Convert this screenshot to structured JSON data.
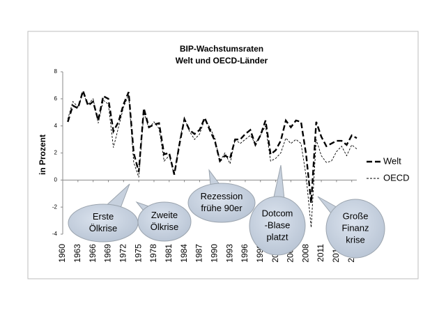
{
  "chart_data": {
    "type": "line",
    "title": [
      "BIP-Wachstumsraten",
      "Welt und OECD-Länder"
    ],
    "y_label": "in Prozent",
    "x": [
      1961,
      1962,
      1963,
      1964,
      1965,
      1966,
      1967,
      1968,
      1969,
      1970,
      1971,
      1972,
      1973,
      1974,
      1975,
      1976,
      1977,
      1978,
      1979,
      1980,
      1981,
      1982,
      1983,
      1984,
      1985,
      1986,
      1987,
      1988,
      1989,
      1990,
      1991,
      1992,
      1993,
      1994,
      1995,
      1996,
      1997,
      1998,
      1999,
      2000,
      2001,
      2002,
      2003,
      2004,
      2005,
      2006,
      2007,
      2008,
      2009,
      2010,
      2011,
      2012,
      2013,
      2014,
      2015,
      2016,
      2017,
      2018
    ],
    "series": [
      {
        "name": "Welt",
        "color": "#000000",
        "values": [
          4.3,
          5.5,
          5.3,
          6.6,
          5.5,
          5.8,
          4.4,
          6.2,
          6.0,
          3.6,
          4.3,
          5.6,
          6.5,
          2.0,
          0.6,
          5.3,
          3.9,
          4.1,
          4.2,
          1.9,
          2.0,
          0.4,
          2.6,
          4.5,
          3.7,
          3.4,
          3.7,
          4.6,
          3.7,
          2.9,
          1.4,
          1.8,
          1.6,
          3.0,
          3.0,
          3.4,
          3.7,
          2.6,
          3.3,
          4.4,
          1.9,
          2.2,
          2.9,
          4.4,
          3.9,
          4.4,
          4.3,
          1.9,
          -1.7,
          4.3,
          3.2,
          2.5,
          2.7,
          2.9,
          2.9,
          2.6,
          3.3,
          3.1
        ]
      },
      {
        "name": "OECD",
        "color": "#000000",
        "values": [
          4.5,
          5.8,
          5.4,
          6.4,
          5.6,
          6.0,
          4.2,
          5.9,
          5.6,
          2.4,
          3.9,
          5.4,
          6.3,
          1.3,
          0.2,
          5.0,
          3.8,
          4.3,
          3.8,
          1.4,
          1.8,
          0.4,
          2.8,
          4.6,
          3.6,
          3.0,
          3.4,
          4.5,
          3.9,
          3.1,
          1.4,
          2.0,
          1.2,
          3.0,
          2.7,
          3.0,
          3.3,
          2.7,
          3.3,
          4.0,
          1.4,
          1.6,
          2.0,
          3.1,
          2.7,
          3.0,
          2.7,
          0.3,
          -3.5,
          3.0,
          1.8,
          1.3,
          1.4,
          2.1,
          2.5,
          1.8,
          2.6,
          2.3
        ]
      }
    ],
    "xlim": [
      1960,
      2018
    ],
    "xticks": [
      1960,
      1963,
      1966,
      1969,
      1972,
      1975,
      1978,
      1981,
      1984,
      1987,
      1990,
      1993,
      1996,
      1999,
      2002,
      2005,
      2008,
      2011,
      2014,
      2017
    ],
    "ylim": [
      -4,
      8
    ],
    "yticks": [
      -4,
      -2,
      0,
      2,
      4,
      6,
      8
    ],
    "grid": false,
    "legend": "right",
    "annotations": [
      {
        "text": [
          "Erste",
          "Ölkrise"
        ]
      },
      {
        "text": [
          "Zweite",
          "Ölkrise"
        ]
      },
      {
        "text": [
          "Rezession",
          "frühe 90er"
        ]
      },
      {
        "text": [
          "Dotcom",
          "-Blase",
          "platzt"
        ]
      },
      {
        "text": [
          "Große",
          "Finanz",
          "krise"
        ]
      }
    ]
  }
}
